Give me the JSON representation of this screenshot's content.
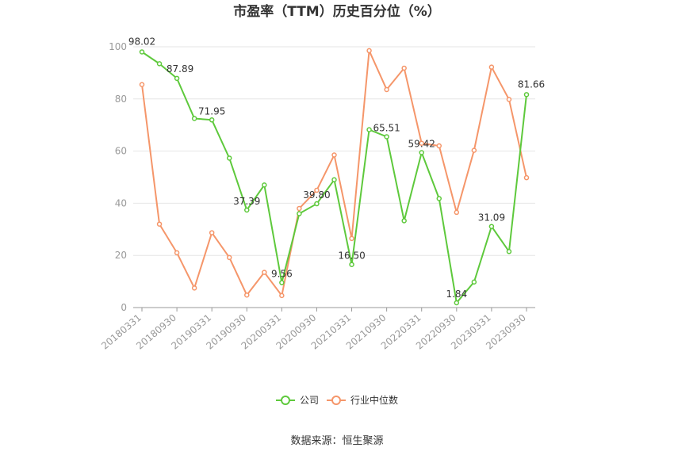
{
  "chart_data": {
    "type": "line",
    "title": "市盈率（TTM）历史百分位（%）",
    "source": "数据来源：恒生聚源",
    "ylim": [
      0,
      100
    ],
    "yticks": [
      0,
      20,
      40,
      60,
      80,
      100
    ],
    "grid": true,
    "legend_position": "bottom",
    "x": [
      "20180331",
      "20180630",
      "20180930",
      "20181231",
      "20190331",
      "20190630",
      "20190930",
      "20191231",
      "20200331",
      "20200630",
      "20200930",
      "20201231",
      "20210331",
      "20210630",
      "20210930",
      "20211231",
      "20220331",
      "20220630",
      "20220930",
      "20221231",
      "20230331",
      "20230630",
      "20230930"
    ],
    "x_tick_labels": [
      "20180331",
      "20180930",
      "20190331",
      "20190930",
      "20200331",
      "20200930",
      "20210331",
      "20210930",
      "20220331",
      "20220930",
      "20230331",
      "20230930"
    ],
    "series": [
      {
        "name": "公司",
        "color": "#5ec93c",
        "values": [
          98.02,
          93.5,
          87.89,
          72.5,
          71.95,
          57.3,
          37.39,
          47.0,
          9.56,
          36.0,
          39.8,
          49.0,
          16.5,
          68.2,
          65.51,
          33.3,
          59.42,
          41.8,
          1.84,
          9.8,
          31.09,
          21.5,
          81.66
        ],
        "labels": [
          "98.02",
          "",
          "87.89",
          "",
          "71.95",
          "",
          "37.39",
          "",
          "9.56",
          "",
          "39.80",
          "",
          "16.50",
          "",
          "65.51",
          "",
          "59.42",
          "",
          "1.84",
          "",
          "31.09",
          "",
          "81.66"
        ]
      },
      {
        "name": "行业中位数",
        "color": "#f5966a",
        "values": [
          85.5,
          32.0,
          21.0,
          7.5,
          28.7,
          19.2,
          4.8,
          13.5,
          4.6,
          38.0,
          45.0,
          58.5,
          26.5,
          98.5,
          83.6,
          91.8,
          63.0,
          62.0,
          36.5,
          60.3,
          92.2,
          79.8,
          49.8
        ]
      }
    ]
  }
}
